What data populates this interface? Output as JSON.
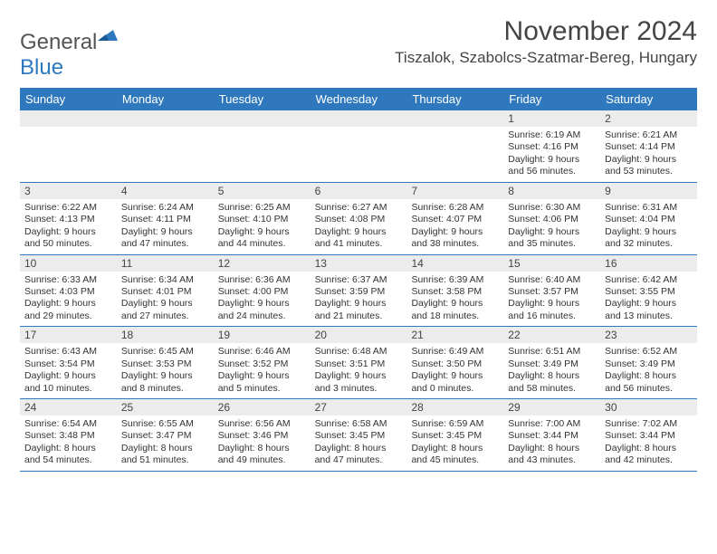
{
  "logo": {
    "text_general": "General",
    "text_blue": "Blue"
  },
  "header": {
    "month_title": "November 2024",
    "location": "Tiszalok, Szabolcs-Szatmar-Bereg, Hungary"
  },
  "calendar": {
    "day_headers": [
      "Sunday",
      "Monday",
      "Tuesday",
      "Wednesday",
      "Thursday",
      "Friday",
      "Saturday"
    ],
    "header_bg": "#2f78bd",
    "weeks": [
      [
        null,
        null,
        null,
        null,
        null,
        {
          "n": "1",
          "sr": "6:19 AM",
          "ss": "4:16 PM",
          "dh": "9",
          "dm": "56"
        },
        {
          "n": "2",
          "sr": "6:21 AM",
          "ss": "4:14 PM",
          "dh": "9",
          "dm": "53"
        }
      ],
      [
        {
          "n": "3",
          "sr": "6:22 AM",
          "ss": "4:13 PM",
          "dh": "9",
          "dm": "50"
        },
        {
          "n": "4",
          "sr": "6:24 AM",
          "ss": "4:11 PM",
          "dh": "9",
          "dm": "47"
        },
        {
          "n": "5",
          "sr": "6:25 AM",
          "ss": "4:10 PM",
          "dh": "9",
          "dm": "44"
        },
        {
          "n": "6",
          "sr": "6:27 AM",
          "ss": "4:08 PM",
          "dh": "9",
          "dm": "41"
        },
        {
          "n": "7",
          "sr": "6:28 AM",
          "ss": "4:07 PM",
          "dh": "9",
          "dm": "38"
        },
        {
          "n": "8",
          "sr": "6:30 AM",
          "ss": "4:06 PM",
          "dh": "9",
          "dm": "35"
        },
        {
          "n": "9",
          "sr": "6:31 AM",
          "ss": "4:04 PM",
          "dh": "9",
          "dm": "32"
        }
      ],
      [
        {
          "n": "10",
          "sr": "6:33 AM",
          "ss": "4:03 PM",
          "dh": "9",
          "dm": "29"
        },
        {
          "n": "11",
          "sr": "6:34 AM",
          "ss": "4:01 PM",
          "dh": "9",
          "dm": "27"
        },
        {
          "n": "12",
          "sr": "6:36 AM",
          "ss": "4:00 PM",
          "dh": "9",
          "dm": "24"
        },
        {
          "n": "13",
          "sr": "6:37 AM",
          "ss": "3:59 PM",
          "dh": "9",
          "dm": "21"
        },
        {
          "n": "14",
          "sr": "6:39 AM",
          "ss": "3:58 PM",
          "dh": "9",
          "dm": "18"
        },
        {
          "n": "15",
          "sr": "6:40 AM",
          "ss": "3:57 PM",
          "dh": "9",
          "dm": "16"
        },
        {
          "n": "16",
          "sr": "6:42 AM",
          "ss": "3:55 PM",
          "dh": "9",
          "dm": "13"
        }
      ],
      [
        {
          "n": "17",
          "sr": "6:43 AM",
          "ss": "3:54 PM",
          "dh": "9",
          "dm": "10"
        },
        {
          "n": "18",
          "sr": "6:45 AM",
          "ss": "3:53 PM",
          "dh": "9",
          "dm": "8"
        },
        {
          "n": "19",
          "sr": "6:46 AM",
          "ss": "3:52 PM",
          "dh": "9",
          "dm": "5"
        },
        {
          "n": "20",
          "sr": "6:48 AM",
          "ss": "3:51 PM",
          "dh": "9",
          "dm": "3"
        },
        {
          "n": "21",
          "sr": "6:49 AM",
          "ss": "3:50 PM",
          "dh": "9",
          "dm": "0"
        },
        {
          "n": "22",
          "sr": "6:51 AM",
          "ss": "3:49 PM",
          "dh": "8",
          "dm": "58"
        },
        {
          "n": "23",
          "sr": "6:52 AM",
          "ss": "3:49 PM",
          "dh": "8",
          "dm": "56"
        }
      ],
      [
        {
          "n": "24",
          "sr": "6:54 AM",
          "ss": "3:48 PM",
          "dh": "8",
          "dm": "54"
        },
        {
          "n": "25",
          "sr": "6:55 AM",
          "ss": "3:47 PM",
          "dh": "8",
          "dm": "51"
        },
        {
          "n": "26",
          "sr": "6:56 AM",
          "ss": "3:46 PM",
          "dh": "8",
          "dm": "49"
        },
        {
          "n": "27",
          "sr": "6:58 AM",
          "ss": "3:45 PM",
          "dh": "8",
          "dm": "47"
        },
        {
          "n": "28",
          "sr": "6:59 AM",
          "ss": "3:45 PM",
          "dh": "8",
          "dm": "45"
        },
        {
          "n": "29",
          "sr": "7:00 AM",
          "ss": "3:44 PM",
          "dh": "8",
          "dm": "43"
        },
        {
          "n": "30",
          "sr": "7:02 AM",
          "ss": "3:44 PM",
          "dh": "8",
          "dm": "42"
        }
      ]
    ],
    "labels": {
      "sunrise": "Sunrise:",
      "sunset": "Sunset:",
      "daylight": "Daylight:",
      "hours": "hours",
      "and": "and",
      "minutes": "minutes."
    }
  }
}
